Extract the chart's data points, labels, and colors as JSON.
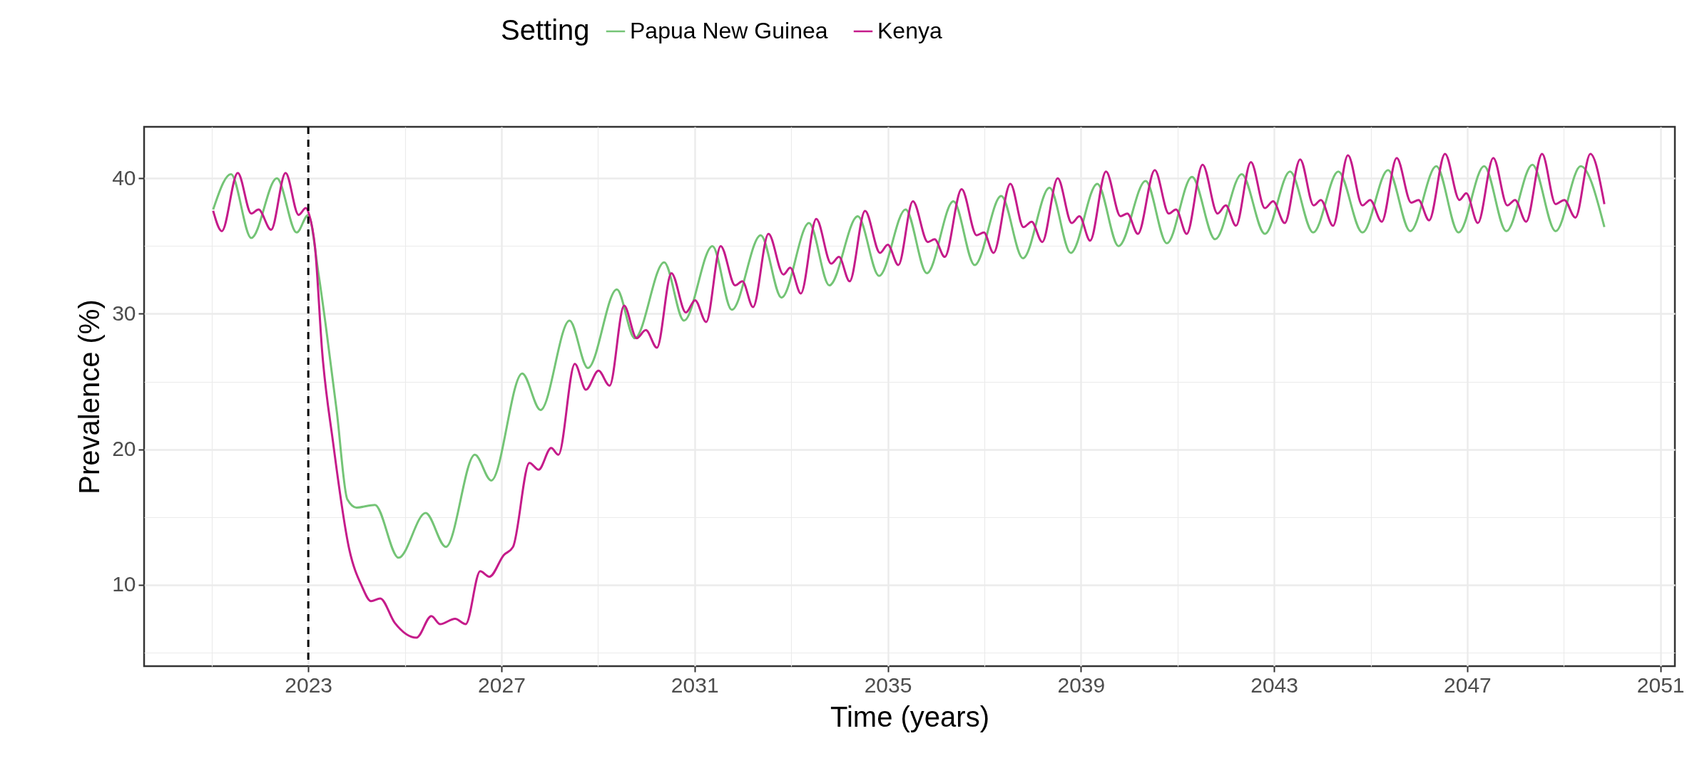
{
  "chart_data": {
    "type": "line",
    "xlabel": "Time (years)",
    "ylabel": "Prevalence (%)",
    "legend_title": "Setting",
    "legend": "top",
    "grid": true,
    "xlim": [
      2019.6,
      2051.3
    ],
    "ylim": [
      4.0,
      43.8
    ],
    "xticks": [
      {
        "value": 2021,
        "label": null
      },
      2023,
      {
        "value": 2025,
        "label": null
      },
      2027,
      {
        "value": 2029,
        "label": null
      },
      2031,
      {
        "value": 2033,
        "label": null
      },
      2035,
      {
        "value": 2037,
        "label": null
      },
      2039,
      {
        "value": 2041,
        "label": null
      },
      2043,
      {
        "value": 2045,
        "label": null
      },
      2047,
      {
        "value": 2049,
        "label": null
      },
      2051
    ],
    "yticks": [
      {
        "value": 5,
        "label": null
      },
      10,
      {
        "value": 15,
        "label": null
      },
      20,
      {
        "value": 25,
        "label": null
      },
      30,
      {
        "value": 35,
        "label": null
      },
      40
    ],
    "ref_lines": [
      {
        "axis": "x",
        "value": 2023,
        "color": "#000000",
        "line_style": "dashed"
      }
    ],
    "series": [
      {
        "name": "Papua New Guinea",
        "color": "#74c476",
        "x": [
          2021.03,
          2021.4,
          2021.82,
          2022.35,
          2022.76,
          2023.0,
          2023.21,
          2023.36,
          2023.59,
          2023.81,
          2024.0,
          2024.38,
          2024.87,
          2025.43,
          2025.85,
          2026.45,
          2026.79,
          2027.43,
          2027.81,
          2028.41,
          2028.79,
          2029.39,
          2029.76,
          2030.37,
          2030.78,
          2031.37,
          2031.77,
          2032.37,
          2032.8,
          2033.37,
          2033.79,
          2034.38,
          2034.82,
          2035.37,
          2035.81,
          2036.36,
          2036.8,
          2037.35,
          2037.8,
          2038.35,
          2038.79,
          2039.34,
          2039.78,
          2040.34,
          2040.78,
          2041.3,
          2041.78,
          2042.33,
          2042.81,
          2043.33,
          2043.81,
          2044.33,
          2044.83,
          2045.36,
          2045.82,
          2046.36,
          2046.82,
          2047.35,
          2047.81,
          2048.35,
          2048.83,
          2049.35,
          2049.84
        ],
        "values": [
          37.7,
          40.3,
          35.6,
          40.0,
          36.0,
          37.3,
          33.0,
          29.2,
          22.8,
          16.3,
          15.7,
          15.9,
          12.0,
          15.3,
          12.8,
          19.6,
          17.7,
          25.6,
          22.9,
          29.5,
          26.0,
          31.8,
          28.2,
          33.8,
          29.5,
          35.0,
          30.3,
          35.8,
          31.2,
          36.7,
          32.1,
          37.2,
          32.8,
          37.7,
          33.0,
          38.3,
          33.6,
          38.7,
          34.1,
          39.3,
          34.5,
          39.6,
          35.0,
          39.8,
          35.2,
          40.1,
          35.5,
          40.3,
          35.9,
          40.5,
          36.0,
          40.5,
          36.0,
          40.6,
          36.1,
          40.9,
          36.0,
          40.9,
          36.1,
          41.0,
          36.1,
          40.9,
          36.4
        ]
      },
      {
        "name": "Kenya",
        "color": "#c51b8a",
        "x": [
          2021.03,
          2021.21,
          2021.54,
          2021.82,
          2021.97,
          2022.23,
          2022.53,
          2022.8,
          2022.95,
          2023.02,
          2023.14,
          2023.29,
          2023.51,
          2023.85,
          2024.11,
          2024.3,
          2024.49,
          2024.79,
          2025.24,
          2025.55,
          2025.73,
          2026.04,
          2026.26,
          2026.56,
          2026.75,
          2027.05,
          2027.24,
          2027.58,
          2027.77,
          2028.03,
          2028.18,
          2028.52,
          2028.75,
          2029.01,
          2029.24,
          2029.54,
          2029.8,
          2029.99,
          2030.22,
          2030.52,
          2030.82,
          2031.01,
          2031.24,
          2031.54,
          2031.84,
          2031.99,
          2032.21,
          2032.53,
          2032.84,
          2032.98,
          2033.2,
          2033.52,
          2033.83,
          2033.99,
          2034.21,
          2034.53,
          2034.84,
          2035.0,
          2035.22,
          2035.52,
          2035.83,
          2035.97,
          2036.18,
          2036.53,
          2036.84,
          2036.99,
          2037.19,
          2037.54,
          2037.81,
          2037.98,
          2038.2,
          2038.52,
          2038.81,
          2038.97,
          2039.19,
          2039.52,
          2039.82,
          2039.96,
          2040.18,
          2040.53,
          2040.82,
          2040.97,
          2041.19,
          2041.52,
          2041.83,
          2042.0,
          2042.21,
          2042.52,
          2042.81,
          2042.98,
          2043.22,
          2043.54,
          2043.82,
          2043.97,
          2044.22,
          2044.53,
          2044.83,
          2044.99,
          2045.23,
          2045.54,
          2045.84,
          2045.99,
          2046.21,
          2046.54,
          2046.84,
          2046.98,
          2047.22,
          2047.54,
          2047.83,
          2047.99,
          2048.22,
          2048.55,
          2048.83,
          2049.01,
          2049.24,
          2049.55,
          2049.84
        ],
        "values": [
          37.6,
          36.1,
          40.4,
          37.4,
          37.7,
          36.2,
          40.4,
          37.3,
          37.8,
          37.3,
          34.9,
          27.1,
          20.6,
          12.6,
          9.9,
          8.8,
          9.0,
          7.2,
          6.1,
          7.7,
          7.1,
          7.5,
          7.1,
          11.0,
          10.6,
          12.2,
          12.8,
          19.0,
          18.5,
          20.1,
          19.6,
          26.3,
          24.4,
          25.8,
          24.7,
          30.6,
          28.2,
          28.8,
          27.5,
          33.0,
          30.1,
          31.0,
          29.4,
          35.0,
          32.1,
          32.4,
          30.5,
          35.9,
          32.9,
          33.4,
          31.5,
          37.0,
          33.7,
          34.2,
          32.4,
          37.6,
          34.5,
          35.1,
          33.6,
          38.3,
          35.3,
          35.5,
          34.2,
          39.2,
          35.8,
          36.0,
          34.5,
          39.6,
          36.4,
          36.8,
          35.3,
          40.0,
          36.7,
          37.2,
          35.4,
          40.5,
          37.2,
          37.4,
          35.9,
          40.6,
          37.4,
          37.7,
          35.9,
          41.0,
          37.4,
          38.0,
          36.5,
          41.2,
          37.8,
          38.3,
          36.7,
          41.4,
          38.0,
          38.4,
          36.5,
          41.7,
          38.0,
          38.4,
          36.8,
          41.5,
          38.2,
          38.4,
          36.9,
          41.8,
          38.4,
          38.9,
          36.7,
          41.5,
          38.0,
          38.4,
          36.8,
          41.8,
          38.1,
          38.4,
          37.1,
          41.8,
          38.1
        ]
      }
    ]
  }
}
